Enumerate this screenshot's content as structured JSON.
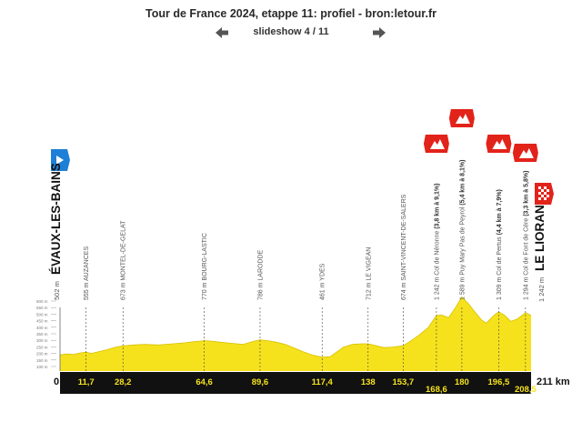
{
  "header": {
    "title": "Tour de France 2024, etappe 11: profiel - bron:letour.fr",
    "counter": "slideshow 4 / 11",
    "prev_icon": "arrow-left-icon",
    "next_icon": "arrow-right-icon"
  },
  "colors": {
    "profile_fill": "#f5e21d",
    "axis_bar": "#111111",
    "climb_marker": "#e2231a",
    "start_marker": "#1e7fd6",
    "text": "#555555"
  },
  "chart_data": {
    "type": "area",
    "start_label": "ÉVAUX-LES-BAINS",
    "finish_label": "LE LIORAN",
    "start_alt": "502 m",
    "finish_alt": "1 242 m",
    "km_start": "0",
    "km_end": "211 km",
    "y_ticks": [
      "600 m",
      "550 m",
      "500 m",
      "450 m",
      "400 m",
      "350 m",
      "300 m",
      "250 m",
      "200 m",
      "150 m",
      "100 m"
    ],
    "waypoints": [
      {
        "label": "555 m AUZANCES",
        "km": 11.7,
        "tick": "11,7",
        "row": "top",
        "climb": ""
      },
      {
        "label": "673 m MONTEL-DE-GELAT",
        "km": 28.2,
        "tick": "28,2",
        "row": "top",
        "climb": ""
      },
      {
        "label": "770 m BOURG-LASTIC",
        "km": 64.6,
        "tick": "64,6",
        "row": "top",
        "climb": ""
      },
      {
        "label": "786 m LARODDE",
        "km": 89.6,
        "tick": "89,6",
        "row": "top",
        "climb": ""
      },
      {
        "label": "461 m YDES",
        "km": 117.4,
        "tick": "117,4",
        "row": "top",
        "climb": ""
      },
      {
        "label": "712 m LE VIGEAN",
        "km": 138,
        "tick": "138",
        "row": "top",
        "climb": ""
      },
      {
        "label": "674 m SAINT-VINCENT-DE-SALERS",
        "km": 153.7,
        "tick": "153,7",
        "row": "top",
        "climb": ""
      },
      {
        "label": "1 242 m Col de Néronne",
        "extra": "(3,8 km à 9,1%)",
        "km": 168.6,
        "tick": "168,6",
        "row": "bottom",
        "climb": "cat1"
      },
      {
        "label": "1 589 m Puy Mary Pas de Peyrol",
        "extra": "(5,4 km à 8,1%)",
        "km": 180,
        "tick": "180",
        "row": "top",
        "climb": "hc"
      },
      {
        "label": "1 309 m Col de Pertus",
        "extra": "(4,4 km à 7,9%)",
        "km": 196.5,
        "tick": "196,5",
        "row": "top",
        "climb": "cat1"
      },
      {
        "label": "1 294 m Col de Font de Cère",
        "extra": "(3,3 km à 5,8%)",
        "km": 208.5,
        "tick": "208,5",
        "row": "bottom",
        "climb": "cat2"
      }
    ],
    "profile": [
      [
        0,
        502
      ],
      [
        3,
        520
      ],
      [
        6,
        510
      ],
      [
        9,
        540
      ],
      [
        11.7,
        555
      ],
      [
        14,
        530
      ],
      [
        17,
        560
      ],
      [
        21,
        600
      ],
      [
        25,
        650
      ],
      [
        28.2,
        673
      ],
      [
        33,
        690
      ],
      [
        38,
        700
      ],
      [
        44,
        690
      ],
      [
        50,
        710
      ],
      [
        56,
        730
      ],
      [
        60,
        750
      ],
      [
        64.6,
        770
      ],
      [
        68,
        760
      ],
      [
        72,
        740
      ],
      [
        77,
        720
      ],
      [
        82,
        700
      ],
      [
        86,
        750
      ],
      [
        89.6,
        786
      ],
      [
        93,
        770
      ],
      [
        97,
        740
      ],
      [
        101,
        700
      ],
      [
        105,
        630
      ],
      [
        109,
        560
      ],
      [
        113,
        500
      ],
      [
        117.4,
        461
      ],
      [
        121,
        470
      ],
      [
        124,
        560
      ],
      [
        127,
        650
      ],
      [
        131,
        700
      ],
      [
        135,
        712
      ],
      [
        138,
        712
      ],
      [
        141,
        680
      ],
      [
        145,
        640
      ],
      [
        149,
        650
      ],
      [
        153.7,
        674
      ],
      [
        157,
        760
      ],
      [
        161,
        880
      ],
      [
        165,
        1020
      ],
      [
        168.6,
        1242
      ],
      [
        171,
        1250
      ],
      [
        174,
        1200
      ],
      [
        177,
        1380
      ],
      [
        180,
        1589
      ],
      [
        183,
        1460
      ],
      [
        186,
        1300
      ],
      [
        189,
        1150
      ],
      [
        191,
        1100
      ],
      [
        194,
        1230
      ],
      [
        196.5,
        1309
      ],
      [
        199,
        1250
      ],
      [
        202,
        1130
      ],
      [
        205,
        1180
      ],
      [
        208.5,
        1294
      ],
      [
        211,
        1242
      ]
    ]
  }
}
